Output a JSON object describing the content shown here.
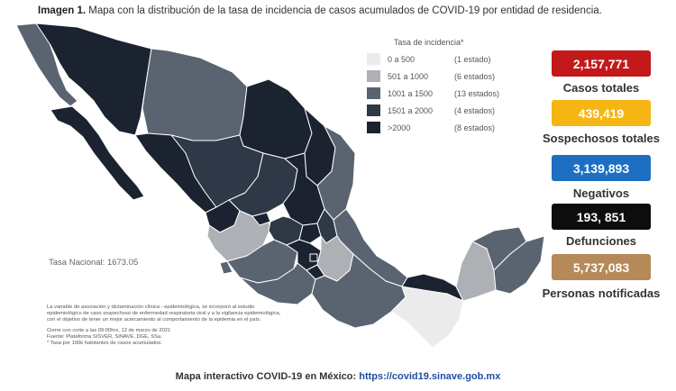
{
  "title": {
    "bold": "Imagen 1.",
    "text": "Mapa con la distribución de la tasa de incidencia de casos acumulados de COVID-19 por entidad de residencia."
  },
  "legend": {
    "title": "Tasa de incidencia*",
    "items": [
      {
        "range": "0 a 500",
        "count": "(1 estado)",
        "color": "#ebebeb"
      },
      {
        "range": "501 a 1000",
        "count": "(6 estados)",
        "color": "#adb0b5"
      },
      {
        "range": "1001 a 1500",
        "count": "(13 estados)",
        "color": "#5a6470"
      },
      {
        "range": "1501 a 2000",
        "count": "(4 estados)",
        "color": "#2e3846"
      },
      {
        "range": ">2000",
        "count": "(8 estados)",
        "color": "#1b2230"
      }
    ]
  },
  "stats": [
    {
      "value": "2,157,771",
      "label": "Casos totales",
      "color": "#c3191a"
    },
    {
      "value": "439,419",
      "label": "Sospechosos totales",
      "color": "#f5b614"
    },
    {
      "value": "3,139,893",
      "label": "Negativos",
      "color": "#1e6fc1"
    },
    {
      "value": "193, 851",
      "label": "Defunciones",
      "color": "#0d0d0d"
    },
    {
      "value": "5,737,083",
      "label": "Personas notificadas",
      "color": "#b58a58"
    }
  ],
  "tasa_nacional": "Tasa Nacional: 1673.05",
  "notes": [
    "La variable de asociación y dictaminación clínica - epidemiológica, se incorporó al estudio",
    "epidemiológico de caso sospechoso de enfermedad respiratoria viral y a la vigilancia epidemiológica,",
    "con el objetivo de tener un mejor acercamiento al comportamiento de la epidemia en el país.",
    "Cierre con corte a las 09:00hrs, 12 de marzo de 2021",
    "Fuente: Plataforma SISVER, SINAVE, DGE, SSa.",
    "* Tasa por 100k habitantes de casos acumulados."
  ],
  "footer": {
    "text": "Mapa interactivo COVID-19 en México:",
    "link": "https://covid19.sinave.gob.mx"
  }
}
